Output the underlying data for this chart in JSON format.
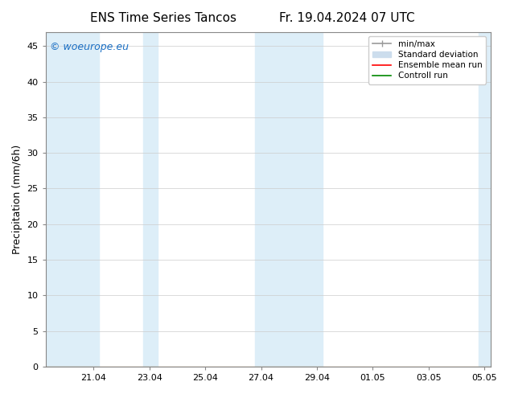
{
  "title_left": "ENS Time Series Tancos",
  "title_right": "Fr. 19.04.2024 07 UTC",
  "ylabel": "Precipitation (mm/6h)",
  "ylim": [
    0,
    47
  ],
  "yticks": [
    0,
    5,
    10,
    15,
    20,
    25,
    30,
    35,
    40,
    45
  ],
  "background_color": "#ffffff",
  "plot_bg_color": "#ffffff",
  "shaded_color": "#ddeef8",
  "x_ticks_labels": [
    "21.04",
    "23.04",
    "25.04",
    "27.04",
    "29.04",
    "01.05",
    "03.05",
    "05.05"
  ],
  "watermark": "© woeurope.eu",
  "watermark_color": "#1a6fc4",
  "legend_entries": [
    "min/max",
    "Standard deviation",
    "Ensemble mean run",
    "Controll run"
  ],
  "legend_colors": [
    "#aaaaaa",
    "#ccddee",
    "#ff0000",
    "#008800"
  ],
  "title_fontsize": 11,
  "axis_fontsize": 9,
  "tick_fontsize": 8
}
